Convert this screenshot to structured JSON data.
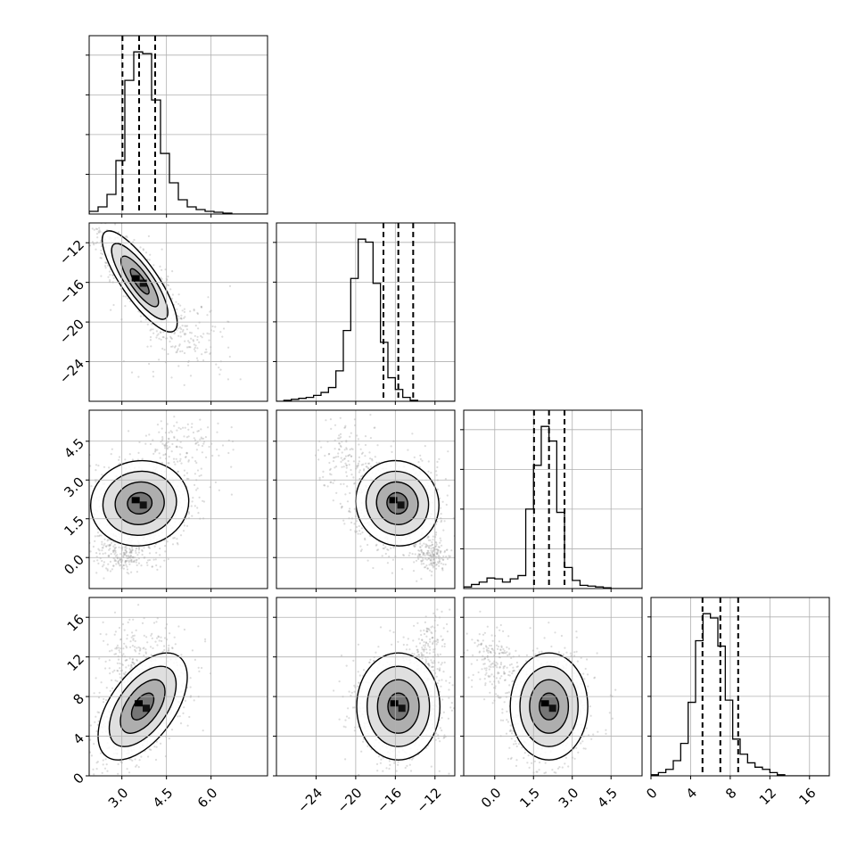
{
  "chart_data": {
    "type": "corner",
    "description_params": 4,
    "colors": {
      "line": "#000000",
      "grid": "#b0b0b0",
      "scatter": "#9a9a9a",
      "frame": "#000000"
    },
    "grid": true,
    "params": [
      {
        "range": [
          1.9,
          7.9
        ],
        "ticks": [
          3.0,
          4.5,
          6.0
        ],
        "tick_labels": [
          "3.0",
          "4.5",
          "6.0"
        ],
        "quantiles": [
          3.02,
          3.58,
          4.12
        ],
        "hist": {
          "edges_start": 1.9,
          "bin_width": 0.3,
          "counts": [
            3,
            8,
            22,
            60,
            150,
            182,
            180,
            128,
            68,
            35,
            16,
            8,
            5,
            3,
            2,
            1,
            0,
            0,
            0,
            0
          ]
        }
      },
      {
        "range": [
          -28.0,
          -10.0
        ],
        "ticks": [
          -24,
          -20,
          -16,
          -12
        ],
        "tick_labels": [
          "−24",
          "−20",
          "−16",
          "−12"
        ],
        "quantiles": [
          -17.2,
          -15.7,
          -14.2
        ],
        "hist": {
          "edges_start": -28.0,
          "bin_width": 0.75,
          "counts": [
            0,
            1,
            2,
            3,
            4,
            6,
            9,
            14,
            31,
            72,
            125,
            165,
            162,
            120,
            60,
            24,
            12,
            4,
            1,
            0,
            0,
            0,
            0,
            0
          ]
        }
      },
      {
        "range": [
          -1.2,
          5.7
        ],
        "ticks": [
          0.0,
          1.5,
          3.0,
          4.5
        ],
        "tick_labels": [
          "0.0",
          "1.5",
          "3.0",
          "4.5"
        ],
        "quantiles": [
          1.52,
          2.1,
          2.7
        ],
        "hist": {
          "edges_start": -1.2,
          "bin_width": 0.3,
          "counts": [
            2,
            5,
            8,
            13,
            12,
            8,
            12,
            16,
            98,
            152,
            200,
            182,
            94,
            26,
            10,
            4,
            3,
            2,
            1,
            0,
            0,
            0,
            0
          ]
        }
      },
      {
        "range": [
          0.0,
          18.0
        ],
        "ticks": [
          0,
          4,
          8,
          12,
          16
        ],
        "tick_labels": [
          "0",
          "4",
          "8",
          "12",
          "16"
        ],
        "quantiles": [
          5.2,
          7.0,
          8.8
        ],
        "hist": {
          "edges_start": 0.0,
          "bin_width": 0.75,
          "counts": [
            1,
            3,
            6,
            14,
            30,
            68,
            125,
            150,
            146,
            120,
            70,
            34,
            20,
            12,
            8,
            6,
            3,
            1,
            0,
            0,
            0,
            0,
            0,
            0
          ]
        }
      }
    ],
    "pairs": [
      {
        "row": 1,
        "col": 0,
        "center": [
          3.6,
          -15.9
        ],
        "rho": -0.82,
        "sigma_x": 0.42,
        "sigma_y": 1.7,
        "tail": {
          "center": [
            5.2,
            -21.5
          ],
          "sx": 0.8,
          "sy": 2.2,
          "weight": 0.12
        }
      },
      {
        "row": 2,
        "col": 0,
        "center": [
          3.6,
          2.1
        ],
        "rho": 0.05,
        "sigma_x": 0.55,
        "sigma_y": 0.55,
        "tail": {
          "center": [
            3.0,
            0.1
          ],
          "sx": 0.6,
          "sy": 0.35,
          "weight": 0.18
        },
        "tail2": {
          "center": [
            4.9,
            4.3
          ],
          "sx": 0.7,
          "sy": 0.6,
          "weight": 0.1
        }
      },
      {
        "row": 2,
        "col": 1,
        "center": [
          -15.8,
          2.1
        ],
        "rho": -0.05,
        "sigma_x": 1.4,
        "sigma_y": 0.55,
        "tail": {
          "center": [
            -12.4,
            0.1
          ],
          "sx": 0.9,
          "sy": 0.35,
          "weight": 0.14
        },
        "tail2": {
          "center": [
            -21.0,
            4.0
          ],
          "sx": 1.6,
          "sy": 0.8,
          "weight": 0.1
        }
      },
      {
        "row": 3,
        "col": 0,
        "center": [
          3.7,
          7.0
        ],
        "rho": 0.55,
        "sigma_x": 0.5,
        "sigma_y": 1.8,
        "tail": {
          "center": [
            3.5,
            12.0
          ],
          "sx": 0.6,
          "sy": 2.0,
          "weight": 0.14
        }
      },
      {
        "row": 3,
        "col": 1,
        "center": [
          -15.7,
          7.0
        ],
        "rho": 0.0,
        "sigma_x": 1.4,
        "sigma_y": 1.8,
        "tail": {
          "center": [
            -12.5,
            12.5
          ],
          "sx": 1.0,
          "sy": 2.0,
          "weight": 0.13
        }
      },
      {
        "row": 3,
        "col": 2,
        "center": [
          2.1,
          7.0
        ],
        "rho": 0.0,
        "sigma_x": 0.5,
        "sigma_y": 1.8,
        "tail": {
          "center": [
            0.0,
            11.5
          ],
          "sx": 0.45,
          "sy": 1.5,
          "weight": 0.14
        }
      }
    ],
    "contour_levels_sigma": [
      0.5,
      1.0,
      1.5,
      2.0
    ]
  }
}
